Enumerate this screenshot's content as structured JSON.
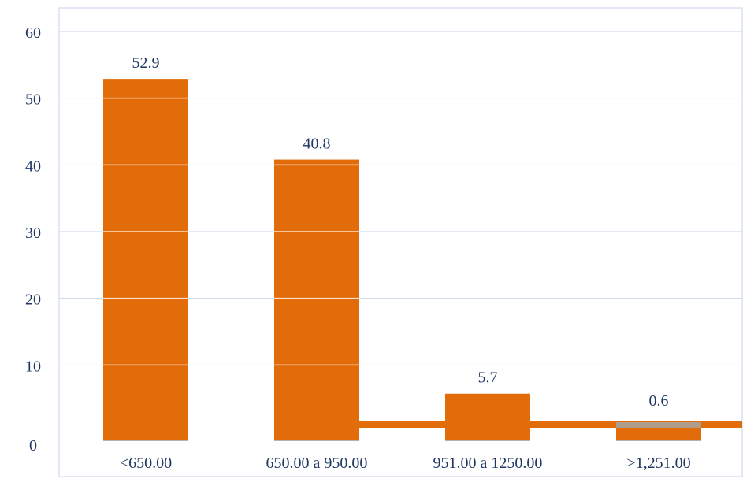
{
  "chart_data": {
    "type": "bar",
    "categories": [
      "<650.00",
      "650.00 a 950.00",
      "951.00 a 1250.00",
      ">1,251.00"
    ],
    "values": [
      52.9,
      40.8,
      5.7,
      0.6
    ],
    "data_labels": [
      "52.9",
      "40.8",
      "5.7",
      "0.6"
    ],
    "y_ticks": [
      "0",
      "10",
      "20",
      "30",
      "40",
      "50",
      "60"
    ],
    "title": "",
    "xlabel": "",
    "ylabel": "",
    "ylim": [
      0,
      60
    ],
    "grid": true,
    "legend": "none",
    "colors": {
      "bar": "#E36C0A",
      "axis_text": "#1F3864",
      "grid": "#C9D7EA",
      "border": "#D9E2F0",
      "base_shadow": "#A6A6A6",
      "baseline": "#E36C0A"
    }
  }
}
